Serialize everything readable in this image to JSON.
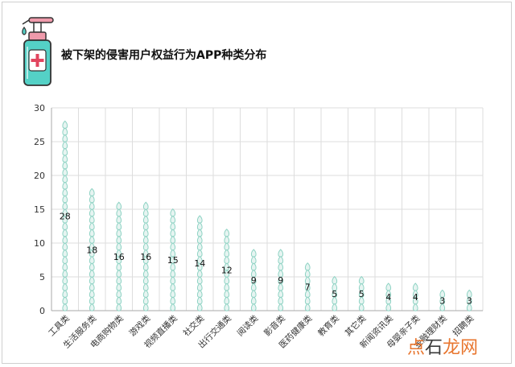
{
  "title": "被下架的侵害用户权益行为APP种类分布",
  "watermark": {
    "part1": "点",
    "part2": "石",
    "part3": "龙网"
  },
  "colors": {
    "drop_fill": "#e6f4f1",
    "drop_stroke": "#8fd3c4",
    "grid": "#dddddd",
    "axis": "#aaaaaa",
    "bottle_body": "#54d1c6",
    "bottle_pump": "#ef9aab"
  },
  "icon": "hand-sanitizer-bottle-icon",
  "chart_data": {
    "type": "bar",
    "style": "pictograph-drops",
    "title": "被下架的侵害用户权益行为APP种类分布",
    "xlabel": "",
    "ylabel": "",
    "ylim": [
      0,
      30
    ],
    "yticks": [
      0,
      5,
      10,
      15,
      20,
      25,
      30
    ],
    "grid": true,
    "categories": [
      "工具类",
      "生活服务类",
      "电商购物类",
      "游戏类",
      "视频直播类",
      "社交类",
      "出行交通类",
      "阅读类",
      "影音类",
      "医药健康类",
      "教育类",
      "其它类",
      "新闻资讯类",
      "母婴亲子类",
      "金融理财类",
      "招聘类"
    ],
    "values": [
      28,
      18,
      16,
      16,
      15,
      14,
      12,
      9,
      9,
      7,
      5,
      5,
      4,
      4,
      3,
      3
    ]
  }
}
